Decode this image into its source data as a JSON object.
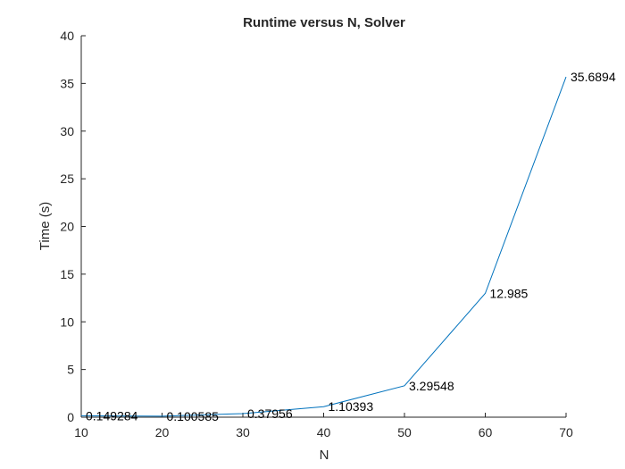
{
  "chart_data": {
    "type": "line",
    "title": "Runtime versus N, Solver",
    "xlabel": "N",
    "ylabel": "Time (s)",
    "xlim": [
      10,
      70
    ],
    "ylim": [
      0,
      40
    ],
    "xticks": [
      10,
      20,
      30,
      40,
      50,
      60,
      70
    ],
    "yticks": [
      0,
      5,
      10,
      15,
      20,
      25,
      30,
      35,
      40
    ],
    "grid": false,
    "series": [
      {
        "color": "#0072BD",
        "x": [
          10,
          20,
          30,
          40,
          50,
          60,
          70
        ],
        "y": [
          0.149284,
          0.100585,
          0.37956,
          1.10393,
          3.29548,
          12.985,
          35.6894
        ],
        "labels": [
          "0.149284",
          "0.100585",
          "0.37956",
          "1.10393",
          "3.29548",
          "12.985",
          "35.6894"
        ]
      }
    ]
  }
}
